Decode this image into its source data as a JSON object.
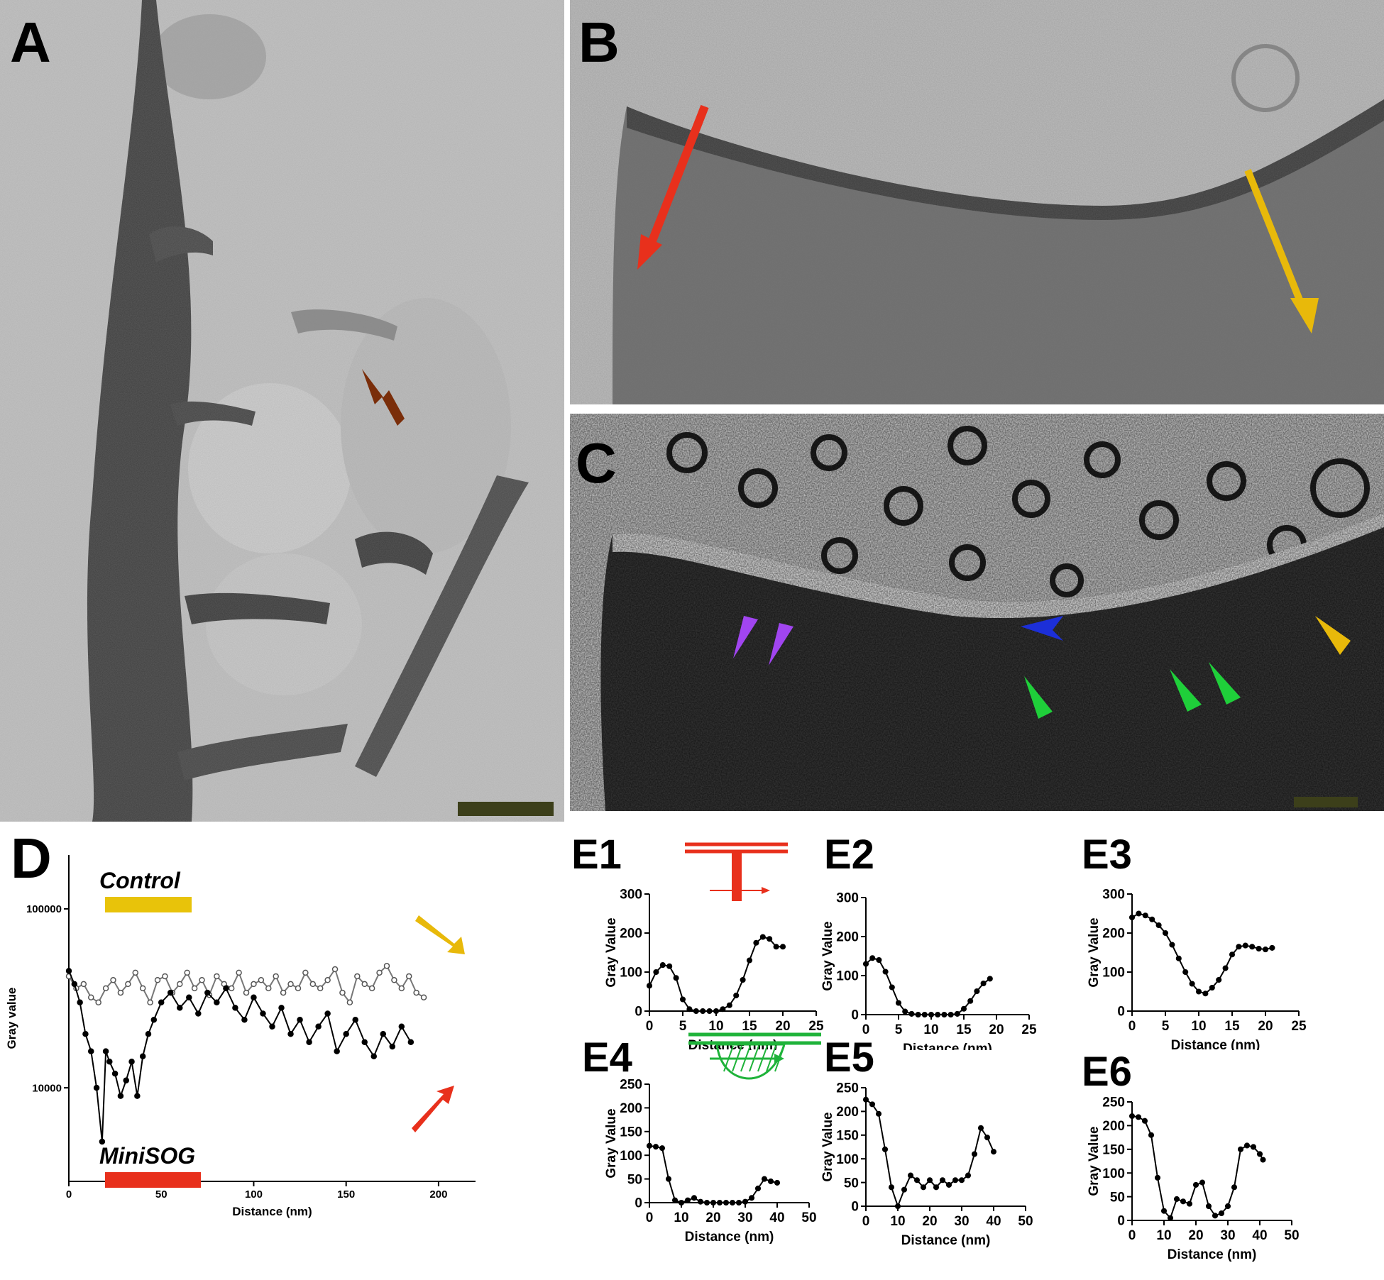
{
  "panels": {
    "A": {
      "label": "A"
    },
    "B": {
      "label": "B"
    },
    "C": {
      "label": "C"
    },
    "D": {
      "label": "D"
    },
    "E1": {
      "label": "E1"
    },
    "E2": {
      "label": "E2"
    },
    "E3": {
      "label": "E3"
    },
    "E4": {
      "label": "E4"
    },
    "E5": {
      "label": "E5"
    },
    "E6": {
      "label": "E6"
    }
  },
  "arrow_colors": {
    "brown": "#7a2e0a",
    "red": "#e8301c",
    "yellow": "#e8b90a",
    "purple": "#a145f0",
    "blue": "#1c2fd8",
    "green": "#1fcf3a"
  },
  "chart_data": [
    {
      "panel": "D",
      "type": "line",
      "xlabel": "Distance (nm)",
      "ylabel": "Gray value",
      "xlim": [
        0,
        220
      ],
      "ylim": [
        3000,
        200000
      ],
      "y_scale": "log",
      "xticks": [
        0,
        50,
        100,
        150,
        200
      ],
      "yticks": [
        10000,
        100000
      ],
      "legend": [
        {
          "name": "Control",
          "color": "#e8c30a"
        },
        {
          "name": "MiniSOG",
          "color": "#e8301c"
        }
      ],
      "series": [
        {
          "name": "Control",
          "style": "open-circles",
          "x": [
            0,
            4,
            8,
            12,
            16,
            20,
            24,
            28,
            32,
            36,
            40,
            44,
            48,
            52,
            56,
            60,
            64,
            68,
            72,
            76,
            80,
            84,
            88,
            92,
            96,
            100,
            104,
            108,
            112,
            116,
            120,
            124,
            128,
            132,
            136,
            140,
            144,
            148,
            152,
            156,
            160,
            164,
            168,
            172,
            176,
            180,
            184,
            188,
            192
          ],
          "y": [
            42000,
            36000,
            38000,
            32000,
            30000,
            36000,
            40000,
            34000,
            38000,
            44000,
            36000,
            30000,
            40000,
            42000,
            34000,
            38000,
            44000,
            36000,
            40000,
            33000,
            42000,
            38000,
            36000,
            44000,
            34000,
            38000,
            40000,
            36000,
            42000,
            34000,
            38000,
            36000,
            44000,
            38000,
            36000,
            40000,
            46000,
            34000,
            30000,
            42000,
            38000,
            36000,
            44000,
            48000,
            40000,
            36000,
            42000,
            34000,
            32000
          ]
        },
        {
          "name": "MiniSOG",
          "style": "filled-circles",
          "x": [
            0,
            3,
            6,
            9,
            12,
            15,
            18,
            20,
            22,
            25,
            28,
            31,
            34,
            37,
            40,
            43,
            46,
            50,
            55,
            60,
            65,
            70,
            75,
            80,
            85,
            90,
            95,
            100,
            105,
            110,
            115,
            120,
            125,
            130,
            135,
            140,
            145,
            150,
            155,
            160,
            165,
            170,
            175,
            180,
            185
          ],
          "y": [
            45000,
            38000,
            30000,
            20000,
            16000,
            10000,
            5000,
            16000,
            14000,
            12000,
            9000,
            11000,
            14000,
            9000,
            15000,
            20000,
            24000,
            30000,
            34000,
            28000,
            32000,
            26000,
            34000,
            30000,
            36000,
            28000,
            24000,
            32000,
            26000,
            22000,
            28000,
            20000,
            24000,
            18000,
            22000,
            26000,
            16000,
            20000,
            24000,
            18000,
            15000,
            20000,
            17000,
            22000,
            18000
          ]
        }
      ]
    },
    {
      "panel": "E1",
      "type": "line",
      "xlabel": "Distance (nm)",
      "ylabel": "Gray Value",
      "xlim": [
        0,
        25
      ],
      "ylim": [
        0,
        300
      ],
      "xticks": [
        0,
        5,
        10,
        15,
        20,
        25
      ],
      "yticks": [
        0,
        100,
        200,
        300
      ],
      "series": [
        {
          "x": [
            0,
            1,
            2,
            3,
            4,
            5,
            6,
            7,
            8,
            9,
            10,
            11,
            12,
            13,
            14,
            15,
            16,
            17,
            18,
            19,
            20
          ],
          "y": [
            65,
            100,
            118,
            115,
            85,
            30,
            5,
            0,
            0,
            0,
            0,
            5,
            15,
            40,
            80,
            130,
            175,
            190,
            185,
            165,
            165
          ]
        }
      ]
    },
    {
      "panel": "E2",
      "type": "line",
      "xlabel": "Distance (nm)",
      "ylabel": "Gray Value",
      "xlim": [
        0,
        25
      ],
      "ylim": [
        0,
        300
      ],
      "xticks": [
        0,
        5,
        10,
        15,
        20,
        25
      ],
      "yticks": [
        0,
        100,
        200,
        300
      ],
      "series": [
        {
          "x": [
            0,
            1,
            2,
            3,
            4,
            5,
            6,
            7,
            8,
            9,
            10,
            11,
            12,
            13,
            14,
            15,
            16,
            17,
            18,
            19
          ],
          "y": [
            130,
            145,
            140,
            110,
            70,
            30,
            8,
            2,
            0,
            0,
            0,
            0,
            0,
            0,
            2,
            15,
            35,
            60,
            80,
            92
          ]
        }
      ]
    },
    {
      "panel": "E3",
      "type": "line",
      "xlabel": "Distance (nm)",
      "ylabel": "Gray Value",
      "xlim": [
        0,
        25
      ],
      "ylim": [
        0,
        300
      ],
      "xticks": [
        0,
        5,
        10,
        15,
        20,
        25
      ],
      "yticks": [
        0,
        100,
        200,
        300
      ],
      "series": [
        {
          "x": [
            0,
            1,
            2,
            3,
            4,
            5,
            6,
            7,
            8,
            9,
            10,
            11,
            12,
            13,
            14,
            15,
            16,
            17,
            18,
            19,
            20,
            21
          ],
          "y": [
            240,
            250,
            245,
            235,
            220,
            200,
            170,
            135,
            100,
            70,
            50,
            45,
            60,
            80,
            110,
            145,
            165,
            168,
            165,
            160,
            158,
            162
          ]
        }
      ]
    },
    {
      "panel": "E4",
      "type": "line",
      "xlabel": "Distance (nm)",
      "ylabel": "Gray Value",
      "xlim": [
        0,
        50
      ],
      "ylim": [
        0,
        250
      ],
      "xticks": [
        0,
        10,
        20,
        30,
        40,
        50
      ],
      "yticks": [
        0,
        50,
        100,
        150,
        200,
        250
      ],
      "series": [
        {
          "x": [
            0,
            2,
            4,
            6,
            8,
            10,
            12,
            14,
            16,
            18,
            20,
            22,
            24,
            26,
            28,
            30,
            32,
            34,
            36,
            38,
            40
          ],
          "y": [
            120,
            118,
            115,
            50,
            5,
            0,
            5,
            10,
            2,
            0,
            0,
            0,
            0,
            0,
            0,
            2,
            10,
            30,
            50,
            45,
            42
          ]
        }
      ]
    },
    {
      "panel": "E5",
      "type": "line",
      "xlabel": "Distance (nm)",
      "ylabel": "Gray Value",
      "xlim": [
        0,
        50
      ],
      "ylim": [
        0,
        250
      ],
      "xticks": [
        0,
        10,
        20,
        30,
        40,
        50
      ],
      "yticks": [
        0,
        50,
        100,
        150,
        200,
        250
      ],
      "series": [
        {
          "x": [
            0,
            2,
            4,
            6,
            8,
            10,
            12,
            14,
            16,
            18,
            20,
            22,
            24,
            26,
            28,
            30,
            32,
            34,
            36,
            38,
            40
          ],
          "y": [
            225,
            215,
            195,
            120,
            40,
            0,
            35,
            65,
            55,
            40,
            55,
            40,
            55,
            45,
            55,
            55,
            65,
            110,
            165,
            145,
            115
          ]
        }
      ]
    },
    {
      "panel": "E6",
      "type": "line",
      "xlabel": "Distance (nm)",
      "ylabel": "Gray Value",
      "xlim": [
        0,
        50
      ],
      "ylim": [
        0,
        250
      ],
      "xticks": [
        0,
        10,
        20,
        30,
        40,
        50
      ],
      "yticks": [
        0,
        50,
        100,
        150,
        200,
        250
      ],
      "series": [
        {
          "x": [
            0,
            2,
            4,
            6,
            8,
            10,
            12,
            14,
            16,
            18,
            20,
            22,
            24,
            26,
            28,
            30,
            32,
            34,
            36,
            38,
            40,
            41
          ],
          "y": [
            220,
            218,
            210,
            180,
            90,
            20,
            5,
            45,
            40,
            35,
            75,
            80,
            30,
            10,
            15,
            30,
            70,
            150,
            158,
            155,
            140,
            128
          ]
        }
      ]
    }
  ]
}
